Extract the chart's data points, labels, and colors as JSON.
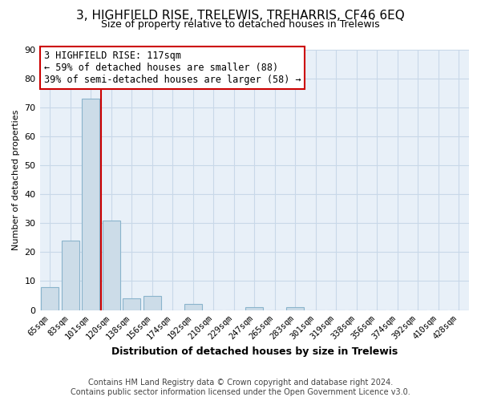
{
  "title": "3, HIGHFIELD RISE, TRELEWIS, TREHARRIS, CF46 6EQ",
  "subtitle": "Size of property relative to detached houses in Trelewis",
  "xlabel": "Distribution of detached houses by size in Trelewis",
  "ylabel": "Number of detached properties",
  "footer_line1": "Contains HM Land Registry data © Crown copyright and database right 2024.",
  "footer_line2": "Contains public sector information licensed under the Open Government Licence v3.0.",
  "bar_labels": [
    "65sqm",
    "83sqm",
    "101sqm",
    "120sqm",
    "138sqm",
    "156sqm",
    "174sqm",
    "192sqm",
    "210sqm",
    "229sqm",
    "247sqm",
    "265sqm",
    "283sqm",
    "301sqm",
    "319sqm",
    "338sqm",
    "356sqm",
    "374sqm",
    "392sqm",
    "410sqm",
    "428sqm"
  ],
  "bar_values": [
    8,
    24,
    73,
    31,
    4,
    5,
    0,
    2,
    0,
    0,
    1,
    0,
    1,
    0,
    0,
    0,
    0,
    0,
    0,
    0,
    0
  ],
  "bar_color": "#ccdce8",
  "bar_edge_color": "#8ab4cc",
  "ylim": [
    0,
    90
  ],
  "yticks": [
    0,
    10,
    20,
    30,
    40,
    50,
    60,
    70,
    80,
    90
  ],
  "vline_color": "#cc0000",
  "vline_x_index": 2.5,
  "annotation_title": "3 HIGHFIELD RISE: 117sqm",
  "annotation_line1": "← 59% of detached houses are smaller (88)",
  "annotation_line2": "39% of semi-detached houses are larger (58) →",
  "annotation_box_facecolor": "#ffffff",
  "annotation_border_color": "#cc0000",
  "grid_color": "#c8d8e8",
  "plot_bg_color": "#e8f0f8",
  "fig_bg_color": "#ffffff",
  "title_fontsize": 11,
  "subtitle_fontsize": 9,
  "xlabel_fontsize": 9,
  "ylabel_fontsize": 8,
  "annot_fontsize": 8.5,
  "tick_fontsize": 7.5,
  "footer_fontsize": 7
}
